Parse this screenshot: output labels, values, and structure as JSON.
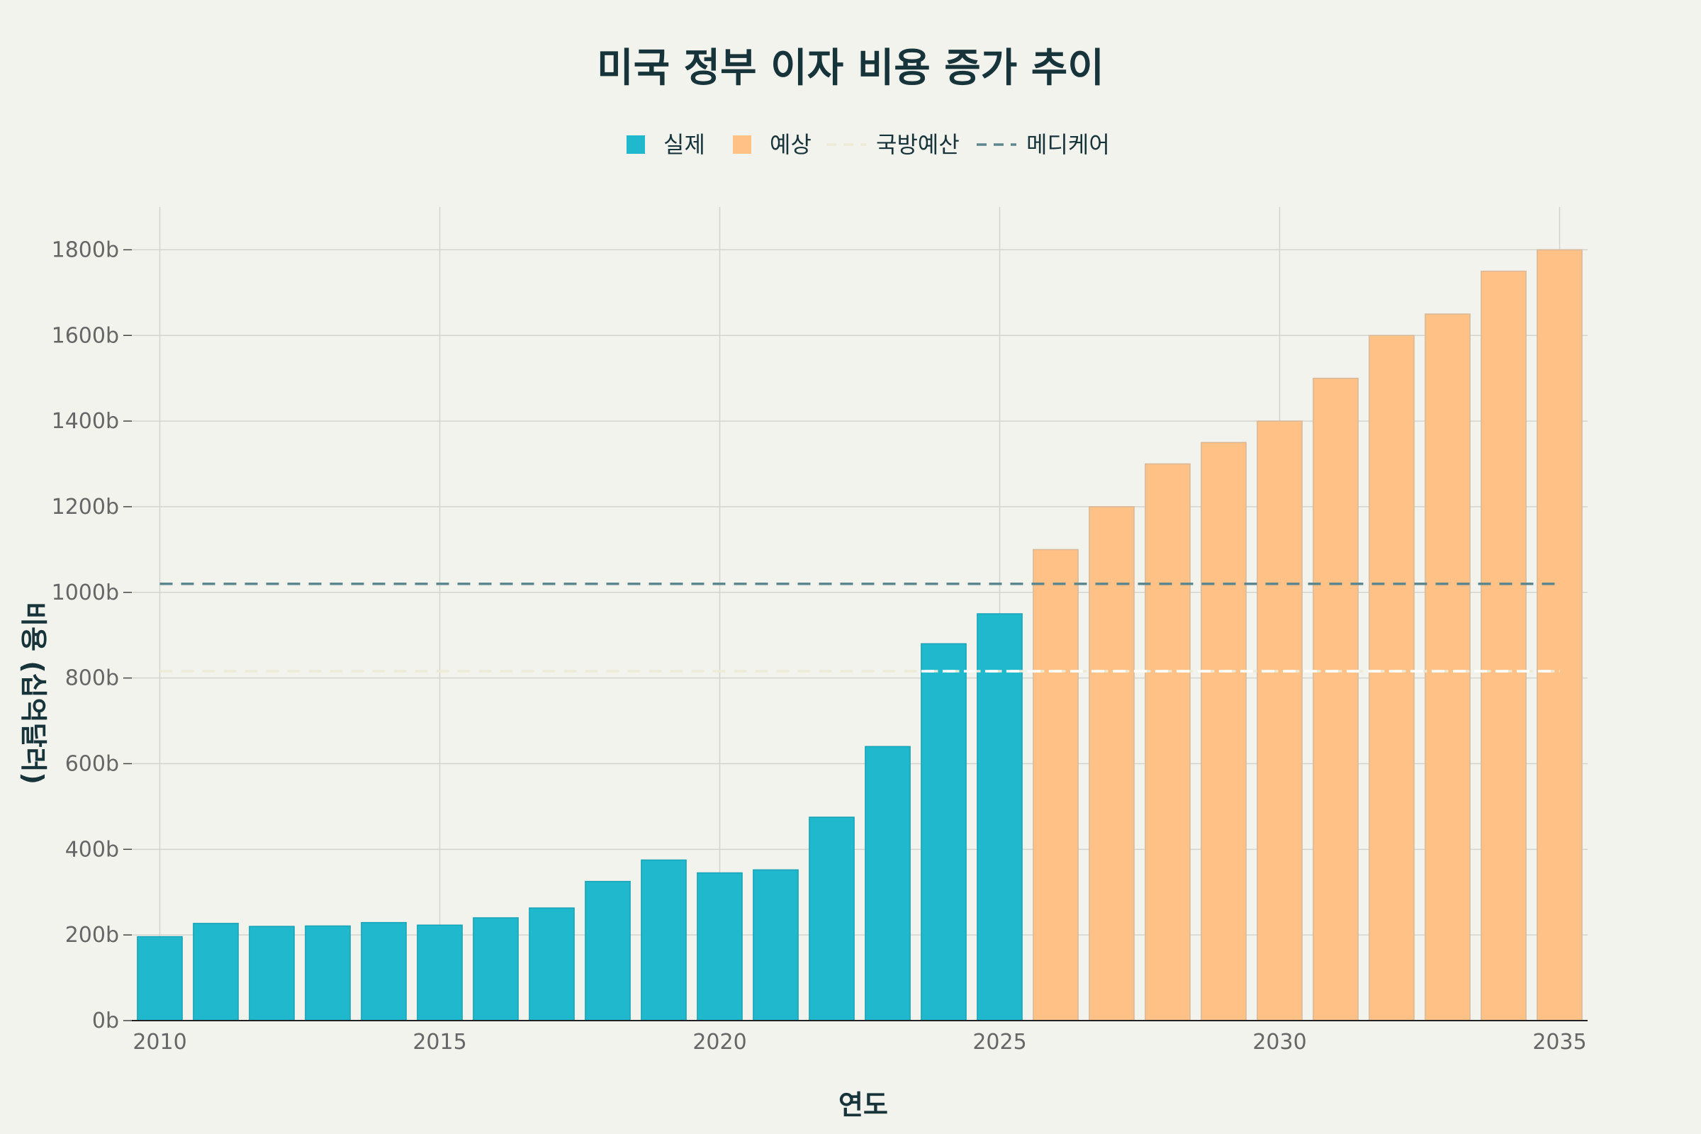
{
  "chart_data": {
    "type": "bar",
    "title": "미국 정부 이자 비용 증가 추이",
    "xlabel": "연도",
    "ylabel": "비용 (십억달러)",
    "ylim": [
      0,
      1900
    ],
    "xlim": [
      2009.5,
      2035.5
    ],
    "yticks": [
      0,
      200,
      400,
      600,
      800,
      1000,
      1200,
      1400,
      1600,
      1800
    ],
    "ytick_labels": [
      "0b",
      "200b",
      "400b",
      "600b",
      "800b",
      "1000b",
      "1200b",
      "1400b",
      "1600b",
      "1800b"
    ],
    "xticks": [
      2010,
      2015,
      2020,
      2025,
      2030,
      2035
    ],
    "xtick_labels": [
      "2010",
      "2015",
      "2020",
      "2025",
      "2030",
      "2035"
    ],
    "grid": true,
    "legend_position": "top-center",
    "series": [
      {
        "name": "실제",
        "color": "#1fb8cd",
        "x": [
          2010,
          2011,
          2012,
          2013,
          2014,
          2015,
          2016,
          2017,
          2018,
          2019,
          2020,
          2021,
          2022,
          2023,
          2024,
          2025
        ],
        "values": [
          196,
          227,
          220,
          221,
          229,
          223,
          240,
          263,
          325,
          375,
          345,
          352,
          475,
          640,
          880,
          950
        ]
      },
      {
        "name": "예상",
        "color": "#ffc185",
        "x": [
          2026,
          2027,
          2028,
          2029,
          2030,
          2031,
          2032,
          2033,
          2034,
          2035
        ],
        "values": [
          1100,
          1200,
          1300,
          1350,
          1400,
          1500,
          1600,
          1650,
          1750,
          1800
        ]
      }
    ],
    "reference_lines": [
      {
        "name": "국방예산",
        "value": 816,
        "color": "#ecebd5",
        "style": "dashed",
        "x_range": [
          2010,
          2035
        ],
        "emphasis_color": "#ffffff",
        "emphasis_from": 2024
      },
      {
        "name": "메디케어",
        "value": 1020,
        "color": "#5d878f",
        "style": "dashed",
        "x_range": [
          2010,
          2035
        ]
      }
    ]
  }
}
